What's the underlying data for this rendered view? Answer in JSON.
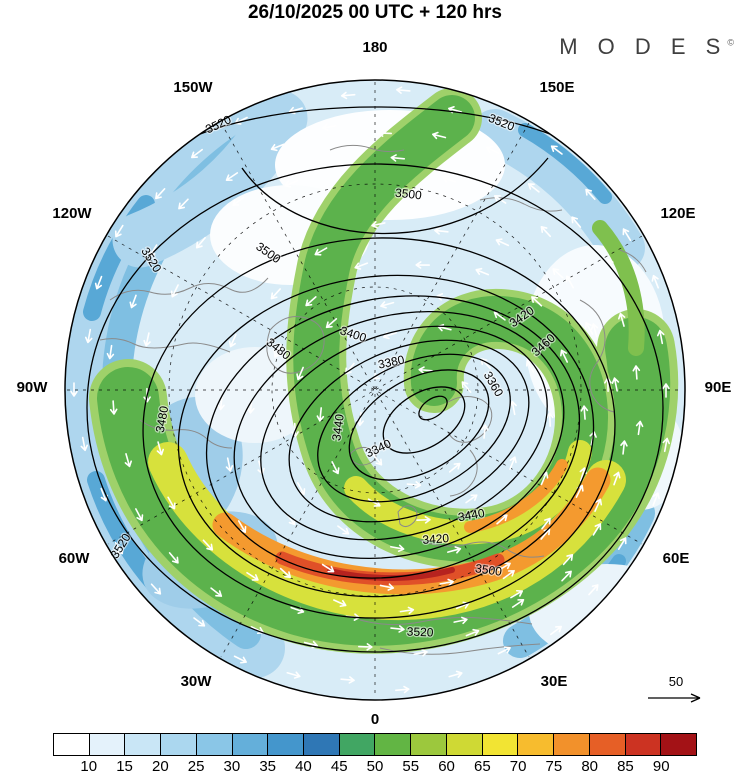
{
  "header": {
    "title": "26/10/2025  00 UTC  + 120 hrs",
    "logo": "M O D E S",
    "logo_mark": "©"
  },
  "map": {
    "lon_labels": [
      "180",
      "150W",
      "150E",
      "120W",
      "120E",
      "90W",
      "90E",
      "60W",
      "60E",
      "30W",
      "30E",
      "0"
    ],
    "contour_levels": [
      "3340",
      "3360",
      "3380",
      "3400",
      "3420",
      "3440",
      "3460",
      "3480",
      "3500",
      "3520"
    ],
    "reference_arrow_value": "50"
  },
  "colorbar": {
    "ticks": [
      "10",
      "15",
      "20",
      "25",
      "30",
      "35",
      "40",
      "45",
      "50",
      "55",
      "60",
      "65",
      "70",
      "75",
      "80",
      "85",
      "90"
    ],
    "colors": [
      "#ffffff",
      "#e4f2fb",
      "#c9e6f6",
      "#abd7ef",
      "#8ac6e7",
      "#64afda",
      "#4496cc",
      "#2f77b5",
      "#41a663",
      "#62b544",
      "#9cc83d",
      "#cfd934",
      "#f2e433",
      "#f7bc2e",
      "#f2912b",
      "#e65f26",
      "#cc3322",
      "#a31216"
    ]
  },
  "chart_data": {
    "type": "heatmap",
    "title": "26/10/2025 00 UTC + 120 hrs",
    "projection": "north polar stereographic",
    "shaded_field": {
      "scale_ticks": [
        10,
        15,
        20,
        25,
        30,
        35,
        40,
        45,
        50,
        55,
        60,
        65,
        70,
        75,
        80,
        85,
        90
      ],
      "scale_colors": [
        "#ffffff",
        "#e4f2fb",
        "#c9e6f6",
        "#abd7ef",
        "#8ac6e7",
        "#64afda",
        "#4496cc",
        "#2f77b5",
        "#41a663",
        "#62b544",
        "#9cc83d",
        "#cfd934",
        "#f2e433",
        "#f7bc2e",
        "#f2912b",
        "#e65f26",
        "#cc3322",
        "#a31216"
      ]
    },
    "contour_field": {
      "levels": [
        3340,
        3360,
        3380,
        3400,
        3420,
        3440,
        3460,
        3480,
        3500,
        3520
      ],
      "interval": 20
    },
    "wind_vectors": {
      "reference_value": 50
    },
    "longitude_ring_labels": [
      "180",
      "150W",
      "150E",
      "120W",
      "120E",
      "90W",
      "90E",
      "60W",
      "60E",
      "30W",
      "30E",
      "0"
    ],
    "legend_position": "bottom"
  }
}
